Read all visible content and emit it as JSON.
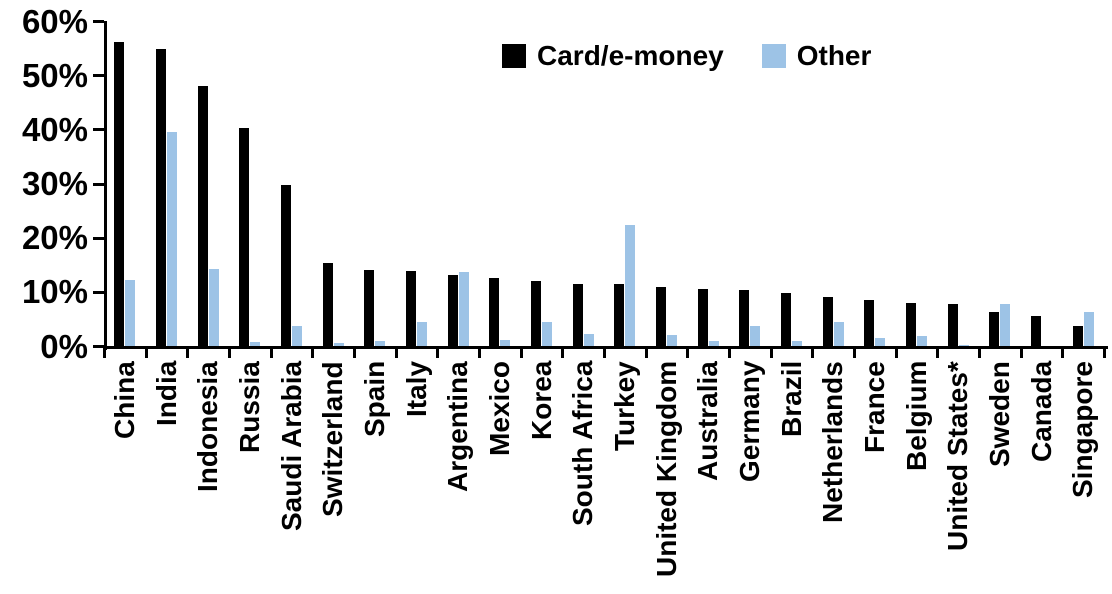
{
  "chart_data": {
    "type": "bar",
    "title": "",
    "xlabel": "",
    "ylabel": "",
    "ylim": [
      0,
      60
    ],
    "yticks": [
      "0%",
      "10%",
      "20%",
      "30%",
      "40%",
      "50%",
      "60%"
    ],
    "grid": false,
    "legend_position": "top-center",
    "categories": [
      "China",
      "India",
      "Indonesia",
      "Russia",
      "Saudi Arabia",
      "Switzerland",
      "Spain",
      "Italy",
      "Argentina",
      "Mexico",
      "Korea",
      "South Africa",
      "Turkey",
      "United Kingdom",
      "Australia",
      "Germany",
      "Brazil",
      "Netherlands",
      "France",
      "Belgium",
      "United States*",
      "Sweden",
      "Canada",
      "Singapore"
    ],
    "series": [
      {
        "name": "Card/e-money",
        "color": "#000000",
        "values": [
          56.3,
          55.0,
          48.2,
          40.4,
          29.9,
          15.5,
          14.1,
          14.0,
          13.3,
          12.7,
          12.1,
          11.6,
          11.5,
          10.9,
          10.7,
          10.4,
          9.9,
          9.1,
          8.6,
          8.0,
          7.8,
          6.4,
          5.7,
          3.7
        ]
      },
      {
        "name": "Other",
        "color": "#9DC3E6",
        "values": [
          12.3,
          39.7,
          14.4,
          0.9,
          3.8,
          0.7,
          1.0,
          4.5,
          13.8,
          1.2,
          4.6,
          2.3,
          22.5,
          2.2,
          1.0,
          3.8,
          1.1,
          4.6,
          1.5,
          1.9,
          0.3,
          7.9,
          0.0,
          6.4
        ]
      }
    ]
  }
}
